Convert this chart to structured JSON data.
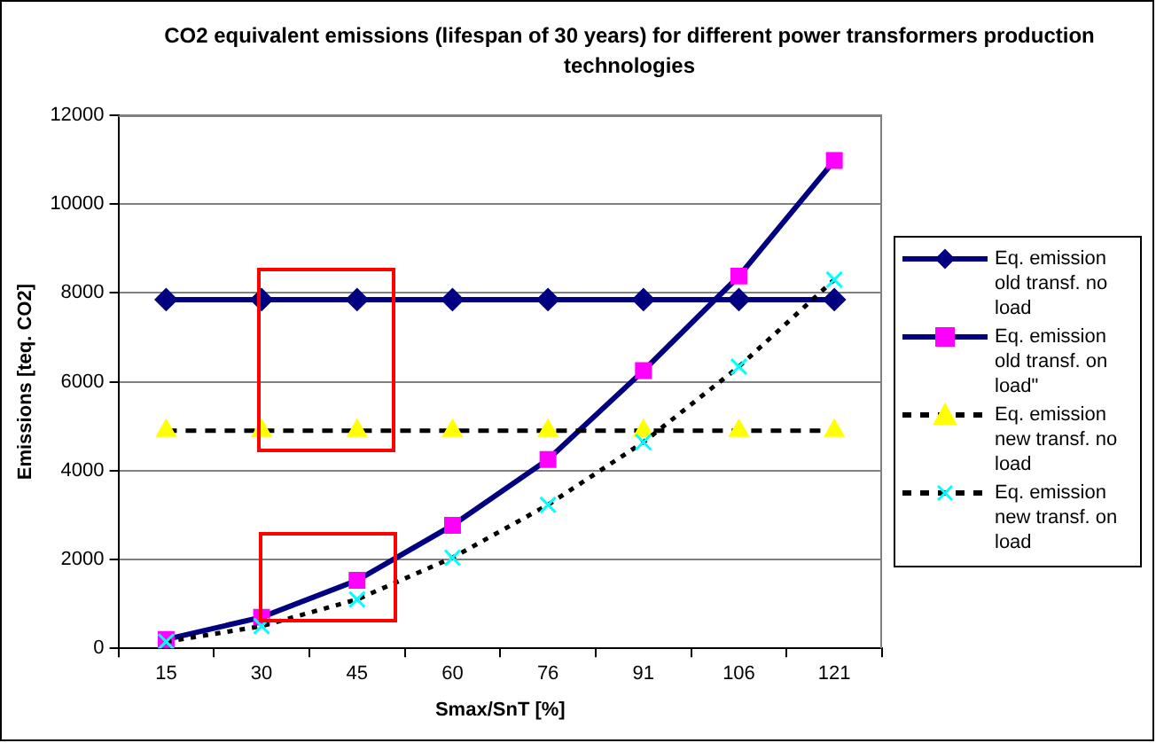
{
  "chart_data": {
    "type": "line",
    "title": "CO2 equivalent emissions (lifespan of 30 years) for different power transformers production technologies",
    "xlabel": "Smax/SnT [%]",
    "ylabel": "Emissions [teq. CO2]",
    "categories": [
      "15",
      "30",
      "45",
      "60",
      "76",
      "91",
      "106",
      "121"
    ],
    "ylim": [
      0,
      12000
    ],
    "yticks": [
      0,
      2000,
      4000,
      6000,
      8000,
      10000,
      12000
    ],
    "grid": "y",
    "legend": "right",
    "series": [
      {
        "name": "Eq. emission old transf. no load",
        "color": "#000080",
        "marker": "diamond",
        "line_style": "solid",
        "values": [
          7850,
          7850,
          7850,
          7850,
          7850,
          7850,
          7850,
          7850
        ]
      },
      {
        "name": "Eq. emission old transf. on load\"",
        "color": "#000080",
        "colors": [
          "#ff00ff",
          "#ff00ff",
          "#ff00ff",
          "#ff00ff",
          "#ff00ff",
          "#ff00ff",
          "#ff00ff",
          "#ff00ff"
        ],
        "marker": "square",
        "line_style": "solid",
        "values": [
          200,
          700,
          1530,
          2770,
          4250,
          6250,
          8380,
          10980
        ]
      },
      {
        "name": "Eq. emission new transf. no load",
        "color": "#000000",
        "colors": [
          "#ffff00",
          "#ffff00",
          "#ffff00",
          "#ffff00",
          "#ffff00",
          "#ffff00",
          "#ffff00",
          "#ffff00"
        ],
        "marker": "triangle",
        "line_style": "dashed",
        "values": [
          4900,
          4900,
          4900,
          4900,
          4900,
          4900,
          4900,
          4900
        ]
      },
      {
        "name": "Eq. emission new transf. on load",
        "color": "#000000",
        "colors": [
          "#00ffff",
          "#00ffff",
          "#00ffff",
          "#00ffff",
          "#00ffff",
          "#00ffff",
          "#00ffff",
          "#00ffff"
        ],
        "marker": "cross",
        "line_style": "dotted",
        "values": [
          150,
          500,
          1100,
          2040,
          3230,
          4640,
          6340,
          8300
        ]
      }
    ]
  }
}
